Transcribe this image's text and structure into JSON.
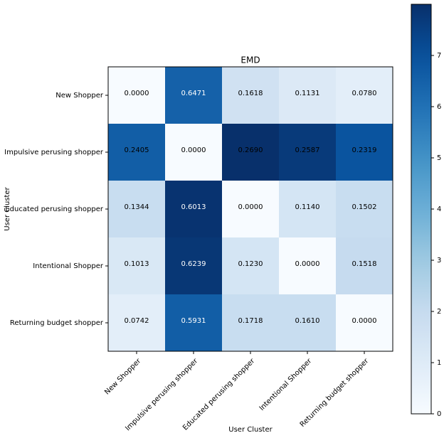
{
  "chart_data": {
    "type": "heatmap",
    "title": "EMD",
    "x_label": "User Cluster",
    "y_label": "User Cluster",
    "categories": [
      "New Shopper",
      "Impulsive perusing shopper",
      "Educated perusing shopper",
      "Intentional Shopper",
      "Returning budget shopper"
    ],
    "values": [
      [
        0,
        6.5,
        1.6,
        1.1,
        0.8
      ],
      [
        6.6,
        0,
        8.0,
        7.7,
        6.9
      ],
      [
        1.9,
        7.9,
        0,
        1.4,
        1.9
      ],
      [
        1.2,
        7.8,
        1.4,
        0,
        2.0
      ],
      [
        0.8,
        6.6,
        1.9,
        1.9,
        0
      ]
    ],
    "annotations": [
      [
        "0.0000",
        "0.6471",
        "0.1618",
        "0.1131",
        "0.0780"
      ],
      [
        "0.2405",
        "0.0000",
        "0.2690",
        "0.2587",
        "0.2319"
      ],
      [
        "0.1344",
        "0.6013",
        "0.0000",
        "0.1140",
        "0.1502"
      ],
      [
        "0.1013",
        "0.6239",
        "0.1230",
        "0.0000",
        "0.1518"
      ],
      [
        "0.0742",
        "0.5931",
        "0.1718",
        "0.1610",
        "0.0000"
      ]
    ],
    "colormap": "Blues",
    "clim": [
      0,
      8
    ],
    "colorbar_ticks": [
      0,
      1,
      2,
      3,
      4,
      5,
      6,
      7
    ]
  }
}
